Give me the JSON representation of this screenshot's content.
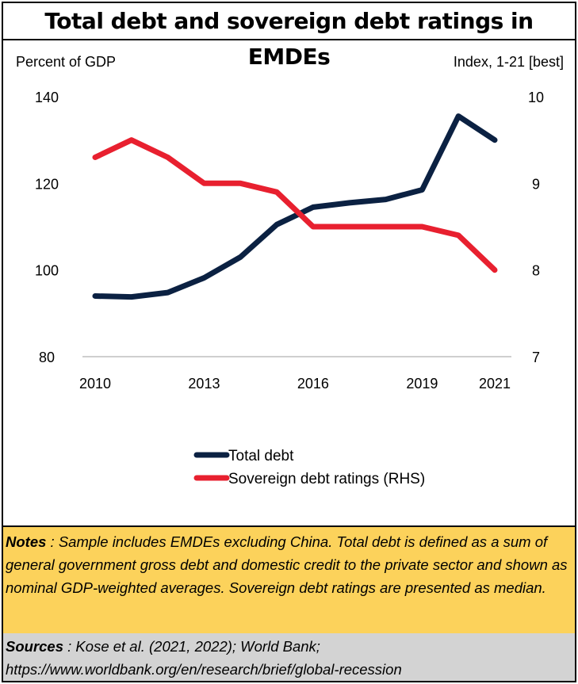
{
  "title": "Total debt and sovereign debt ratings in EMDEs",
  "chart_data": {
    "type": "line",
    "title": "Total debt and sovereign debt ratings in EMDEs",
    "ylabel_left": "Percent of GDP",
    "ylabel_right": "Index, 1-21 [best]",
    "x": [
      2010,
      2011,
      2012,
      2013,
      2014,
      2015,
      2016,
      2017,
      2018,
      2019,
      2020,
      2021
    ],
    "x_tick_labels": [
      "2010",
      "2013",
      "2016",
      "2019",
      "2021"
    ],
    "y_left_ticks": [
      "140",
      "120",
      "100",
      "80"
    ],
    "y_right_ticks": [
      "10",
      "9",
      "8",
      "7"
    ],
    "ylim_left": [
      80,
      140
    ],
    "ylim_right": [
      7,
      10
    ],
    "series": [
      {
        "name": "Total debt",
        "axis": "left",
        "color": "#0b2142",
        "values": [
          94,
          93.8,
          94.8,
          98.2,
          103,
          110.5,
          114.5,
          115.5,
          116.3,
          118.5,
          135.5,
          130
        ]
      },
      {
        "name": "Sovereign debt ratings (RHS)",
        "axis": "right",
        "color": "#e8202f",
        "values": [
          9.3,
          9.5,
          9.3,
          9.0,
          9.0,
          8.9,
          8.5,
          8.5,
          8.5,
          8.5,
          8.4,
          8.0
        ]
      }
    ],
    "legend_position": "bottom-center",
    "grid": false
  },
  "notes": {
    "label": "Notes",
    "text": " : Sample includes EMDEs excluding China. Total debt is defined as a sum of general government gross debt and domestic credit to the private sector and shown as nominal GDP-weighted averages. Sovereign debt ratings are presented as median."
  },
  "sources": {
    "label": "Sources",
    "text": " : Kose et al. (2021, 2022); World Bank; https://www.worldbank.org/en/research/brief/global-recession"
  }
}
